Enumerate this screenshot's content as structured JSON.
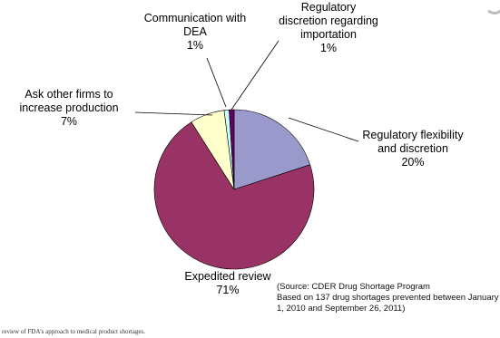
{
  "chart_data": {
    "type": "pie",
    "title": "",
    "slices": [
      {
        "label": "Regulatory flexibility and discretion",
        "label_lines": [
          "Regulatory flexibility",
          "and discretion"
        ],
        "value": 20,
        "pct_label": "20%",
        "color": "#9999cc"
      },
      {
        "label": "Expedited review",
        "label_lines": [
          "Expedited review"
        ],
        "value": 71,
        "pct_label": "71%",
        "color": "#993366"
      },
      {
        "label": "Ask other firms to increase production",
        "label_lines": [
          "Ask other firms to",
          "increase production"
        ],
        "value": 7,
        "pct_label": "7%",
        "color": "#ffffcc"
      },
      {
        "label": "Communication with DEA",
        "label_lines": [
          "Communication with",
          "DEA"
        ],
        "value": 1,
        "pct_label": "1%",
        "color": "#ccffff"
      },
      {
        "label": "Regulatory discretion regarding importation",
        "label_lines": [
          "Regulatory",
          "discretion regarding",
          "importation"
        ],
        "value": 1,
        "pct_label": "1%",
        "color": "#660066"
      }
    ]
  },
  "source_note": {
    "line1": "(Source: CDER Drug Shortage Program",
    "line2": "Based on 137 drug shortages prevented between January",
    "line3": "1, 2010 and September 26, 2011)"
  },
  "footer_text": "review of FDA's approach to medical product shortages."
}
